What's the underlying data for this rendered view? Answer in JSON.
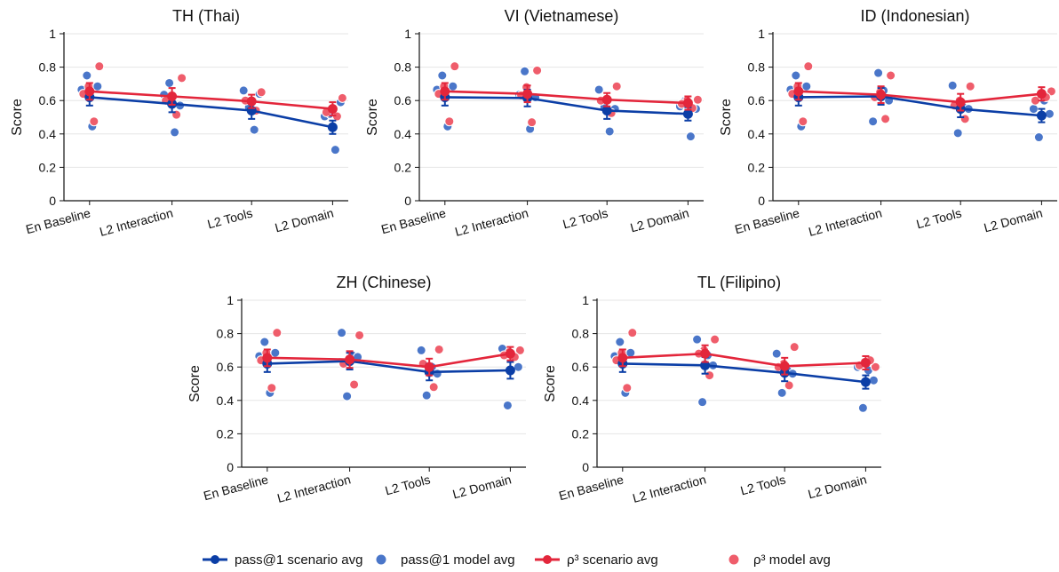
{
  "figure": {
    "colors": {
      "pass1": "#0b3ea6",
      "pass1_model": "#4a76c9",
      "rho": "#e3263b",
      "rho_model": "#ef5d6b",
      "grid": "#e6e6e6",
      "axis": "#111111"
    }
  },
  "legend": {
    "items": [
      {
        "kind": "line",
        "label": "pass@1 scenario avg",
        "color": "#0b3ea6"
      },
      {
        "kind": "dot",
        "label": "pass@1 model avg",
        "color": "#4a76c9"
      },
      {
        "kind": "line",
        "label": "ρ³ scenario avg",
        "color": "#e3263b",
        "math": true
      },
      {
        "kind": "dot",
        "label": "ρ³ model avg",
        "color": "#ef5d6b",
        "math": true
      }
    ]
  },
  "chart_data": [
    {
      "type": "line",
      "title": "TH (Thai)",
      "ylabel": "Score",
      "xlabel": "",
      "categories": [
        "En Baseline",
        "L2 Interaction",
        "L2 Tools",
        "L2 Domain"
      ],
      "ylim": [
        0,
        1
      ],
      "yticks": [
        "0",
        "0.2",
        "0.4",
        "0.6",
        "0.8",
        "1"
      ],
      "grid": true,
      "series": [
        {
          "name": "pass@1 scenario avg",
          "values": [
            0.62,
            0.58,
            0.54,
            0.44
          ],
          "err": [
            0.05,
            0.05,
            0.05,
            0.04
          ]
        },
        {
          "name": "ρ³ scenario avg",
          "values": [
            0.655,
            0.625,
            0.595,
            0.55
          ],
          "err": [
            0.05,
            0.05,
            0.04,
            0.04
          ]
        }
      ],
      "model_points": {
        "pass1": [
          [
            0.665,
            0.75,
            0.445,
            0.685
          ],
          [
            0.635,
            0.705,
            0.41,
            0.57
          ],
          [
            0.66,
            0.56,
            0.425,
            0.64
          ],
          [
            0.505,
            0.52,
            0.305,
            0.59
          ]
        ],
        "rho": [
          [
            0.805,
            0.475,
            0.685,
            0.64
          ],
          [
            0.735,
            0.515,
            0.6,
            0.6
          ],
          [
            0.65,
            0.54,
            0.6,
            0.6
          ],
          [
            0.615,
            0.505,
            0.55,
            0.53
          ]
        ]
      }
    },
    {
      "type": "line",
      "title": "VI (Vietnamese)",
      "ylabel": "Score",
      "xlabel": "",
      "categories": [
        "En Baseline",
        "L2 Interaction",
        "L2 Tools",
        "L2 Domain"
      ],
      "ylim": [
        0,
        1
      ],
      "yticks": [
        "0",
        "0.2",
        "0.4",
        "0.6",
        "0.8",
        "1"
      ],
      "grid": true,
      "series": [
        {
          "name": "pass@1 scenario avg",
          "values": [
            0.62,
            0.615,
            0.54,
            0.52
          ],
          "err": [
            0.05,
            0.05,
            0.05,
            0.04
          ]
        },
        {
          "name": "ρ³ scenario avg",
          "values": [
            0.655,
            0.64,
            0.605,
            0.585
          ],
          "err": [
            0.05,
            0.05,
            0.04,
            0.04
          ]
        }
      ],
      "model_points": {
        "pass1": [
          [
            0.665,
            0.75,
            0.445,
            0.685
          ],
          [
            0.635,
            0.775,
            0.43,
            0.62
          ],
          [
            0.665,
            0.56,
            0.415,
            0.55
          ],
          [
            0.565,
            0.6,
            0.385,
            0.55
          ]
        ],
        "rho": [
          [
            0.805,
            0.475,
            0.685,
            0.64
          ],
          [
            0.78,
            0.47,
            0.68,
            0.63
          ],
          [
            0.685,
            0.525,
            0.605,
            0.6
          ],
          [
            0.605,
            0.555,
            0.6,
            0.58
          ]
        ]
      }
    },
    {
      "type": "line",
      "title": "ID (Indonesian)",
      "ylabel": "Score",
      "xlabel": "",
      "categories": [
        "En Baseline",
        "L2 Interaction",
        "L2 Tools",
        "L2 Domain"
      ],
      "ylim": [
        0,
        1
      ],
      "yticks": [
        "0",
        "0.2",
        "0.4",
        "0.6",
        "0.8",
        "1"
      ],
      "grid": true,
      "series": [
        {
          "name": "pass@1 scenario avg",
          "values": [
            0.62,
            0.625,
            0.55,
            0.51
          ],
          "err": [
            0.05,
            0.05,
            0.05,
            0.04
          ]
        },
        {
          "name": "ρ³ scenario avg",
          "values": [
            0.655,
            0.635,
            0.59,
            0.64
          ],
          "err": [
            0.05,
            0.05,
            0.05,
            0.04
          ]
        }
      ],
      "model_points": {
        "pass1": [
          [
            0.665,
            0.75,
            0.445,
            0.685
          ],
          [
            0.475,
            0.765,
            0.66,
            0.6
          ],
          [
            0.69,
            0.405,
            0.56,
            0.55
          ],
          [
            0.55,
            0.38,
            0.6,
            0.52
          ]
        ],
        "rho": [
          [
            0.805,
            0.475,
            0.685,
            0.64
          ],
          [
            0.75,
            0.49,
            0.65,
            0.62
          ],
          [
            0.685,
            0.49,
            0.6,
            0.57
          ],
          [
            0.655,
            0.62,
            0.64,
            0.6
          ]
        ]
      }
    },
    {
      "type": "line",
      "title": "ZH (Chinese)",
      "ylabel": "Score",
      "xlabel": "",
      "categories": [
        "En Baseline",
        "L2 Interaction",
        "L2 Tools",
        "L2 Domain"
      ],
      "ylim": [
        0,
        1
      ],
      "yticks": [
        "0",
        "0.2",
        "0.4",
        "0.6",
        "0.8",
        "1"
      ],
      "grid": true,
      "series": [
        {
          "name": "pass@1 scenario avg",
          "values": [
            0.62,
            0.635,
            0.57,
            0.58
          ],
          "err": [
            0.05,
            0.05,
            0.05,
            0.05
          ]
        },
        {
          "name": "ρ³ scenario avg",
          "values": [
            0.655,
            0.645,
            0.6,
            0.68
          ],
          "err": [
            0.05,
            0.05,
            0.05,
            0.04
          ]
        }
      ],
      "model_points": {
        "pass1": [
          [
            0.665,
            0.75,
            0.445,
            0.685
          ],
          [
            0.805,
            0.425,
            0.67,
            0.66
          ],
          [
            0.7,
            0.43,
            0.6,
            0.56
          ],
          [
            0.71,
            0.37,
            0.66,
            0.6
          ]
        ],
        "rho": [
          [
            0.805,
            0.475,
            0.685,
            0.64
          ],
          [
            0.79,
            0.495,
            0.64,
            0.62
          ],
          [
            0.705,
            0.48,
            0.6,
            0.62
          ],
          [
            0.7,
            0.66,
            0.69,
            0.67
          ]
        ]
      }
    },
    {
      "type": "line",
      "title": "TL (Filipino)",
      "ylabel": "Score",
      "xlabel": "",
      "categories": [
        "En Baseline",
        "L2 Interaction",
        "L2 Tools",
        "L2 Domain"
      ],
      "ylim": [
        0,
        1
      ],
      "yticks": [
        "0",
        "0.2",
        "0.4",
        "0.6",
        "0.8",
        "1"
      ],
      "grid": true,
      "series": [
        {
          "name": "pass@1 scenario avg",
          "values": [
            0.62,
            0.61,
            0.565,
            0.51
          ],
          "err": [
            0.05,
            0.05,
            0.05,
            0.04
          ]
        },
        {
          "name": "ρ³ scenario avg",
          "values": [
            0.655,
            0.68,
            0.605,
            0.625
          ],
          "err": [
            0.05,
            0.05,
            0.05,
            0.04
          ]
        }
      ],
      "model_points": {
        "pass1": [
          [
            0.665,
            0.75,
            0.445,
            0.685
          ],
          [
            0.765,
            0.39,
            0.67,
            0.61
          ],
          [
            0.68,
            0.445,
            0.58,
            0.56
          ],
          [
            0.6,
            0.355,
            0.58,
            0.52
          ]
        ],
        "rho": [
          [
            0.805,
            0.475,
            0.685,
            0.64
          ],
          [
            0.765,
            0.55,
            0.7,
            0.68
          ],
          [
            0.72,
            0.49,
            0.62,
            0.6
          ],
          [
            0.6,
            0.64,
            0.63,
            0.61
          ]
        ]
      }
    }
  ]
}
